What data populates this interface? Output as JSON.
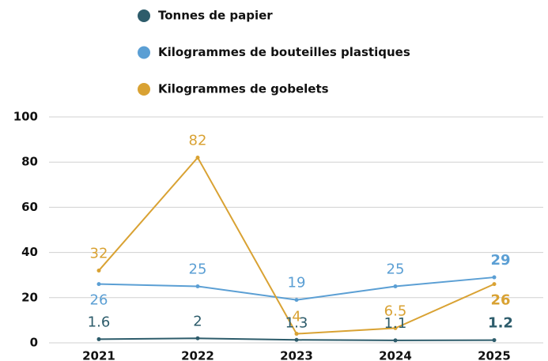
{
  "chart_data": {
    "type": "line",
    "categories": [
      "2021",
      "2022",
      "2023",
      "2024",
      "2025"
    ],
    "series": [
      {
        "name": "Tonnes de papier",
        "color": "#2d5c6b",
        "values": [
          1.6,
          2,
          1.3,
          1.1,
          1.2
        ]
      },
      {
        "name": "Kilogrammes de bouteilles plastiques",
        "color": "#5b9fd4",
        "values": [
          26,
          25,
          19,
          25,
          29
        ]
      },
      {
        "name": "Kilogrammes de gobelets",
        "color": "#d9a233",
        "values": [
          32,
          82,
          4,
          6.5,
          26
        ]
      }
    ],
    "ylim": [
      0,
      100
    ],
    "yticks": [
      0,
      20,
      40,
      60,
      80,
      100
    ],
    "grid": true
  }
}
